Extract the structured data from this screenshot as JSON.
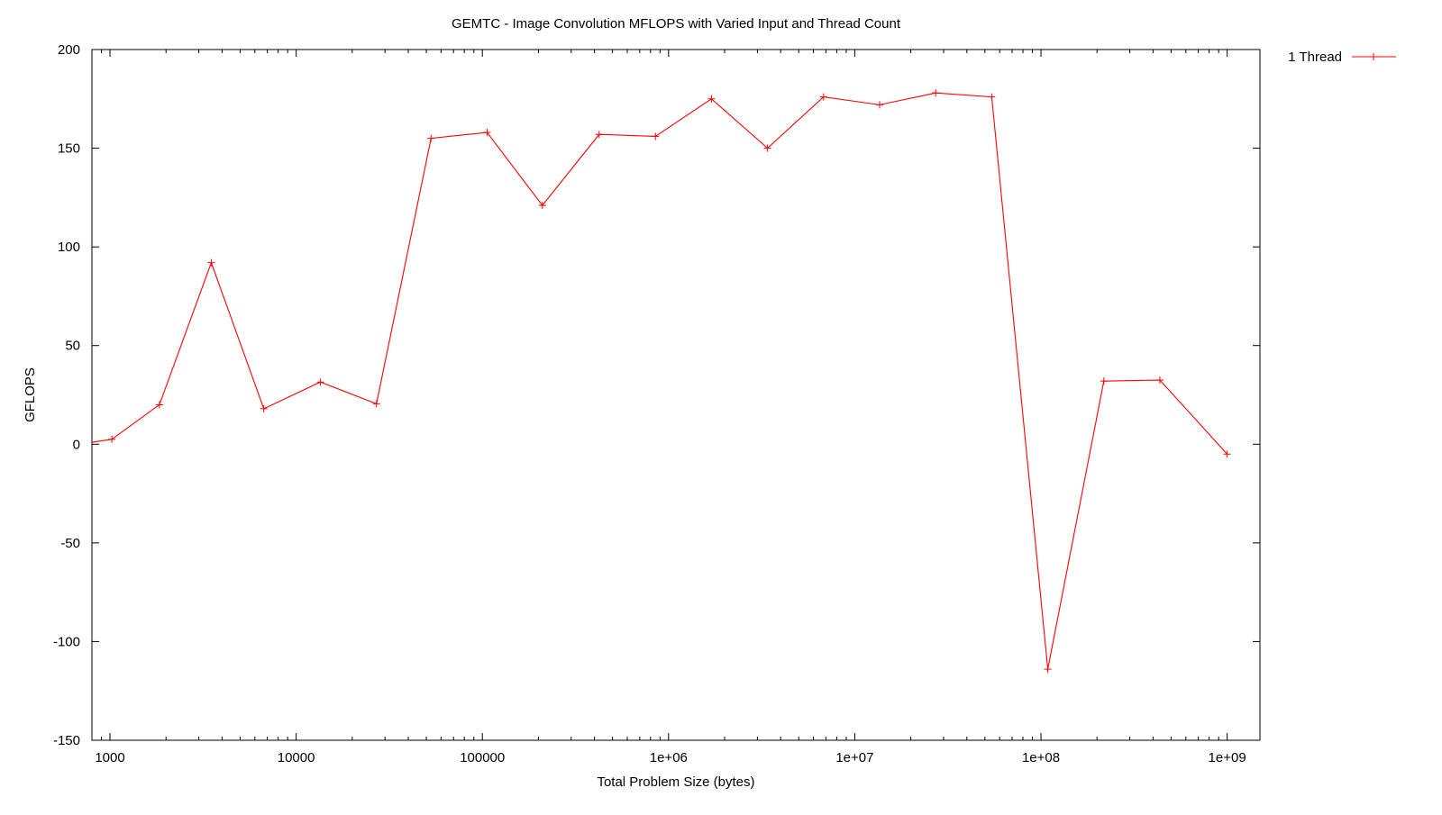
{
  "chart_data": {
    "type": "line",
    "title": "GEMTC - Image Convolution MFLOPS with Varied Input and Thread Count",
    "xlabel": "Total Problem Size (bytes)",
    "ylabel": "GFLOPS",
    "x_scale": "log",
    "xlim": [
      800,
      1500000000
    ],
    "ylim": [
      -150,
      200
    ],
    "x_ticks": [
      {
        "value": 1000,
        "label": "1000"
      },
      {
        "value": 10000,
        "label": "10000"
      },
      {
        "value": 100000,
        "label": "100000"
      },
      {
        "value": 1000000,
        "label": "1e+06"
      },
      {
        "value": 10000000,
        "label": "1e+07"
      },
      {
        "value": 100000000,
        "label": "1e+08"
      },
      {
        "value": 1000000000,
        "label": "1e+09"
      }
    ],
    "y_ticks": [
      {
        "value": 200,
        "label": "200"
      },
      {
        "value": 150,
        "label": "150"
      },
      {
        "value": 100,
        "label": "100"
      },
      {
        "value": 50,
        "label": "50"
      },
      {
        "value": 0,
        "label": "0"
      },
      {
        "value": -50,
        "label": "-50"
      },
      {
        "value": -100,
        "label": "-100"
      },
      {
        "value": -150,
        "label": "-150"
      }
    ],
    "grid": false,
    "legend_position": "top-right",
    "series": [
      {
        "name": "1 Thread",
        "color": "#ff0000",
        "marker": "plus",
        "points": [
          {
            "x": 800,
            "y": 1
          },
          {
            "x": 1024,
            "y": 2.5
          },
          {
            "x": 1843,
            "y": 20
          },
          {
            "x": 3500,
            "y": 92
          },
          {
            "x": 6700,
            "y": 18
          },
          {
            "x": 13500,
            "y": 31.5
          },
          {
            "x": 27000,
            "y": 20.5
          },
          {
            "x": 53000,
            "y": 155
          },
          {
            "x": 106000,
            "y": 158
          },
          {
            "x": 210000,
            "y": 121
          },
          {
            "x": 424000,
            "y": 157
          },
          {
            "x": 850000,
            "y": 156
          },
          {
            "x": 1700000,
            "y": 175
          },
          {
            "x": 3400000,
            "y": 150
          },
          {
            "x": 6800000,
            "y": 176
          },
          {
            "x": 13600000,
            "y": 172
          },
          {
            "x": 27200000,
            "y": 178
          },
          {
            "x": 54400000,
            "y": 176
          },
          {
            "x": 108800000,
            "y": -114
          },
          {
            "x": 217600000,
            "y": 32
          },
          {
            "x": 435000000,
            "y": 32.5
          },
          {
            "x": 1000000000,
            "y": -5
          }
        ]
      }
    ]
  }
}
